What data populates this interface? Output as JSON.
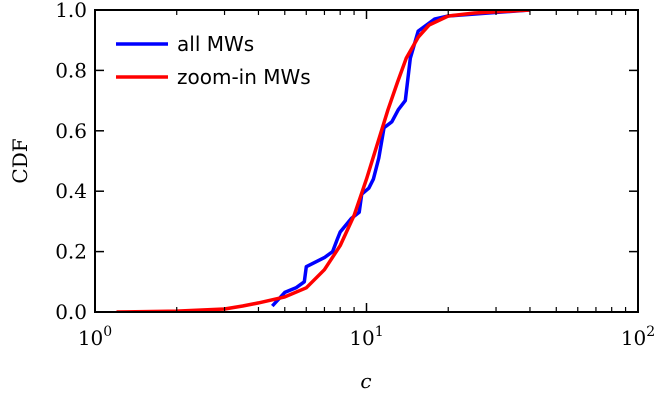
{
  "chart_data": {
    "type": "line",
    "title": "",
    "xlabel": "c",
    "ylabel": "CDF",
    "xscale": "log",
    "xlim": [
      1,
      100
    ],
    "ylim": [
      0,
      1
    ],
    "x_ticks": [
      {
        "value": 1,
        "base": "10",
        "exp": "0"
      },
      {
        "value": 10,
        "base": "10",
        "exp": "1"
      },
      {
        "value": 100,
        "base": "10",
        "exp": "2"
      }
    ],
    "y_ticks": [
      {
        "value": 0.0,
        "label": "0.0"
      },
      {
        "value": 0.2,
        "label": "0.2"
      },
      {
        "value": 0.4,
        "label": "0.4"
      },
      {
        "value": 0.6,
        "label": "0.6"
      },
      {
        "value": 0.8,
        "label": "0.8"
      },
      {
        "value": 1.0,
        "label": "1.0"
      }
    ],
    "grid": false,
    "legend_position": "top-left",
    "series": [
      {
        "name": "all MWs",
        "color": "#0000ff",
        "x": [
          4.5,
          5.0,
          5.5,
          5.9,
          6.0,
          7.0,
          7.5,
          7.8,
          8.0,
          8.8,
          9.4,
          9.6,
          10.2,
          10.6,
          11.1,
          11.6,
          12.4,
          13.1,
          13.9,
          14.5,
          15.5,
          17.8,
          20.0,
          40.0
        ],
        "y": [
          0.02,
          0.065,
          0.08,
          0.1,
          0.15,
          0.18,
          0.2,
          0.24,
          0.265,
          0.31,
          0.33,
          0.39,
          0.41,
          0.44,
          0.51,
          0.61,
          0.63,
          0.67,
          0.7,
          0.84,
          0.93,
          0.97,
          0.98,
          1.0
        ]
      },
      {
        "name": "zoom-in MWs",
        "color": "#ff0000",
        "x": [
          1.2,
          2.0,
          3.0,
          3.5,
          4.0,
          5.0,
          6.0,
          7.0,
          8.0,
          9.0,
          10.0,
          11.0,
          12.0,
          13.0,
          14.0,
          15.5,
          17.0,
          20.0,
          25.0,
          40.0
        ],
        "y": [
          0.0,
          0.003,
          0.01,
          0.02,
          0.03,
          0.05,
          0.08,
          0.14,
          0.22,
          0.32,
          0.44,
          0.56,
          0.67,
          0.76,
          0.84,
          0.91,
          0.95,
          0.98,
          0.99,
          1.0
        ]
      }
    ]
  }
}
